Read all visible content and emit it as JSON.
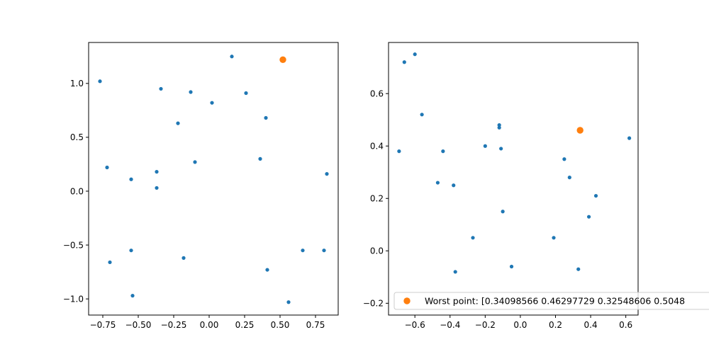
{
  "chart_data": [
    {
      "type": "scatter",
      "title": "",
      "xlabel": "",
      "ylabel": "",
      "xlim": [
        -0.85,
        0.91
      ],
      "ylim": [
        -1.15,
        1.38
      ],
      "xticks": [
        -0.75,
        -0.5,
        -0.25,
        0.0,
        0.25,
        0.5,
        0.75
      ],
      "xtick_labels": [
        "−0.75",
        "−0.50",
        "−0.25",
        "0.00",
        "0.25",
        "0.50",
        "0.75"
      ],
      "yticks": [
        -1.0,
        -0.5,
        0.0,
        0.5,
        1.0
      ],
      "ytick_labels": [
        "−1.0",
        "−0.5",
        "0.0",
        "0.5",
        "1.0"
      ],
      "grid": false,
      "series": [
        {
          "color": "#1f77b4",
          "marker_size": "small",
          "points": [
            [
              -0.77,
              1.02
            ],
            [
              -0.72,
              0.22
            ],
            [
              -0.7,
              -0.66
            ],
            [
              -0.55,
              0.11
            ],
            [
              -0.55,
              -0.55
            ],
            [
              -0.54,
              -0.97
            ],
            [
              -0.37,
              0.18
            ],
            [
              -0.37,
              0.03
            ],
            [
              -0.34,
              0.95
            ],
            [
              -0.22,
              0.63
            ],
            [
              -0.18,
              -0.62
            ],
            [
              -0.13,
              0.92
            ],
            [
              -0.1,
              0.27
            ],
            [
              0.02,
              0.82
            ],
            [
              0.16,
              1.25
            ],
            [
              0.26,
              0.91
            ],
            [
              0.36,
              0.3
            ],
            [
              0.4,
              0.68
            ],
            [
              0.41,
              -0.73
            ],
            [
              0.56,
              -1.03
            ],
            [
              0.66,
              -0.55
            ],
            [
              0.81,
              -0.55
            ],
            [
              0.83,
              0.16
            ]
          ]
        },
        {
          "color": "#ff7f0e",
          "marker_size": "large",
          "points": [
            [
              0.52,
              1.22
            ]
          ]
        }
      ]
    },
    {
      "type": "scatter",
      "title": "",
      "xlabel": "",
      "ylabel": "",
      "xlim": [
        -0.75,
        0.67
      ],
      "ylim": [
        -0.245,
        0.795
      ],
      "xticks": [
        -0.6,
        -0.4,
        -0.2,
        0.0,
        0.2,
        0.4,
        0.6
      ],
      "xtick_labels": [
        "−0.6",
        "−0.4",
        "−0.2",
        "0.0",
        "0.2",
        "0.4",
        "0.6"
      ],
      "yticks": [
        -0.2,
        0.0,
        0.2,
        0.4,
        0.6
      ],
      "ytick_labels": [
        "−0.2",
        "0.0",
        "0.2",
        "0.4",
        "0.6"
      ],
      "grid": false,
      "legend_position": "lower-right",
      "legend": [
        "Worst point: [0.34098566 0.46297729 0.32548606 0.5048"
      ],
      "series": [
        {
          "color": "#1f77b4",
          "marker_size": "small",
          "points": [
            [
              -0.69,
              0.38
            ],
            [
              -0.66,
              0.72
            ],
            [
              -0.6,
              0.75
            ],
            [
              -0.56,
              0.52
            ],
            [
              -0.47,
              0.26
            ],
            [
              -0.44,
              0.38
            ],
            [
              -0.38,
              0.25
            ],
            [
              -0.37,
              -0.08
            ],
            [
              -0.27,
              0.05
            ],
            [
              -0.2,
              0.4
            ],
            [
              -0.12,
              0.47
            ],
            [
              -0.12,
              0.48
            ],
            [
              -0.11,
              0.39
            ],
            [
              -0.1,
              0.15
            ],
            [
              -0.05,
              -0.06
            ],
            [
              0.19,
              0.05
            ],
            [
              0.25,
              0.35
            ],
            [
              0.28,
              0.28
            ],
            [
              0.33,
              -0.07
            ],
            [
              0.39,
              0.13
            ],
            [
              0.43,
              0.21
            ],
            [
              0.62,
              0.43
            ]
          ]
        },
        {
          "color": "#ff7f0e",
          "marker_size": "large",
          "points": [
            [
              0.34,
              0.46
            ]
          ]
        }
      ]
    }
  ]
}
